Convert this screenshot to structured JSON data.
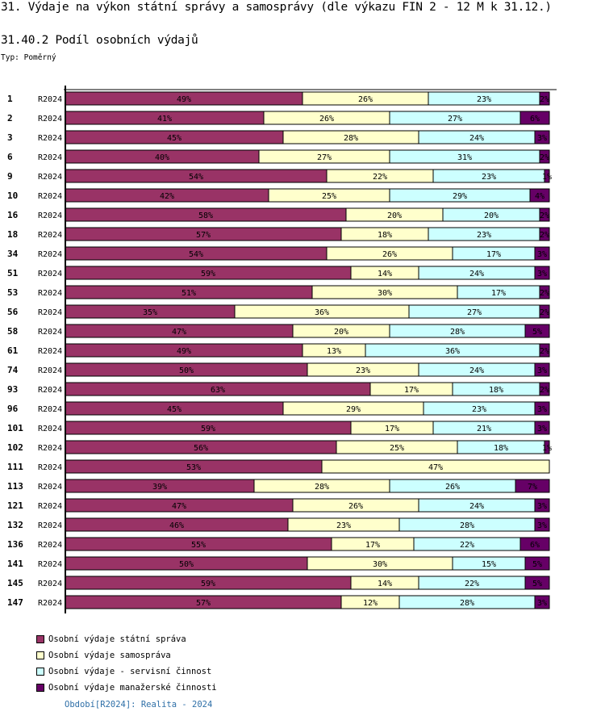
{
  "page": {
    "title": "31. Výdaje na výkon státní správy a samosprávy (dle výkazu FIN 2 - 12 M k 31.12.)",
    "subtitle": "31.40.2 Podíl osobních výdajů",
    "type_label": "Typ: Poměrný",
    "period_note": "Období[R2024]: Realita - 2024"
  },
  "chart_data": {
    "type": "bar",
    "orientation": "horizontal",
    "stacked": true,
    "normalized_percent": true,
    "title": "31.40.2 Podíl osobních výdajů",
    "xlabel": "",
    "ylabel": "",
    "xlim": [
      0,
      100
    ],
    "grid": false,
    "legend_position": "bottom-left",
    "categories": [
      "1",
      "2",
      "3",
      "6",
      "9",
      "10",
      "16",
      "18",
      "34",
      "51",
      "53",
      "56",
      "58",
      "61",
      "74",
      "93",
      "96",
      "101",
      "102",
      "111",
      "113",
      "121",
      "132",
      "136",
      "141",
      "145",
      "147"
    ],
    "period_labels": [
      "R2024",
      "R2024",
      "R2024",
      "R2024",
      "R2024",
      "R2024",
      "R2024",
      "R2024",
      "R2024",
      "R2024",
      "R2024",
      "R2024",
      "R2024",
      "R2024",
      "R2024",
      "R2024",
      "R2024",
      "R2024",
      "R2024",
      "R2024",
      "R2024",
      "R2024",
      "R2024",
      "R2024",
      "R2024",
      "R2024",
      "R2024"
    ],
    "series": [
      {
        "name": "Osobní výdaje státní správa",
        "color": "#993366",
        "values": [
          49,
          41,
          45,
          40,
          54,
          42,
          58,
          57,
          54,
          59,
          51,
          35,
          47,
          49,
          50,
          63,
          45,
          59,
          56,
          53,
          39,
          47,
          46,
          55,
          50,
          59,
          57
        ]
      },
      {
        "name": "Osobní výdaje samospráva",
        "color": "#ffffcc",
        "values": [
          26,
          26,
          28,
          27,
          22,
          25,
          20,
          18,
          26,
          14,
          30,
          36,
          20,
          13,
          23,
          17,
          29,
          17,
          25,
          47,
          28,
          26,
          23,
          17,
          30,
          14,
          12
        ]
      },
      {
        "name": "Osobní výdaje - servisní činnost",
        "color": "#ccffff",
        "values": [
          23,
          27,
          24,
          31,
          23,
          29,
          20,
          23,
          17,
          24,
          17,
          27,
          28,
          36,
          24,
          18,
          23,
          21,
          18,
          0,
          26,
          24,
          28,
          22,
          15,
          22,
          28
        ]
      },
      {
        "name": "Osobní výdaje manažerské činnosti",
        "color": "#660066",
        "values": [
          2,
          6,
          3,
          2,
          1,
          4,
          2,
          2,
          3,
          3,
          2,
          2,
          5,
          2,
          3,
          2,
          3,
          3,
          1,
          0,
          7,
          3,
          3,
          6,
          5,
          5,
          3
        ]
      }
    ]
  }
}
